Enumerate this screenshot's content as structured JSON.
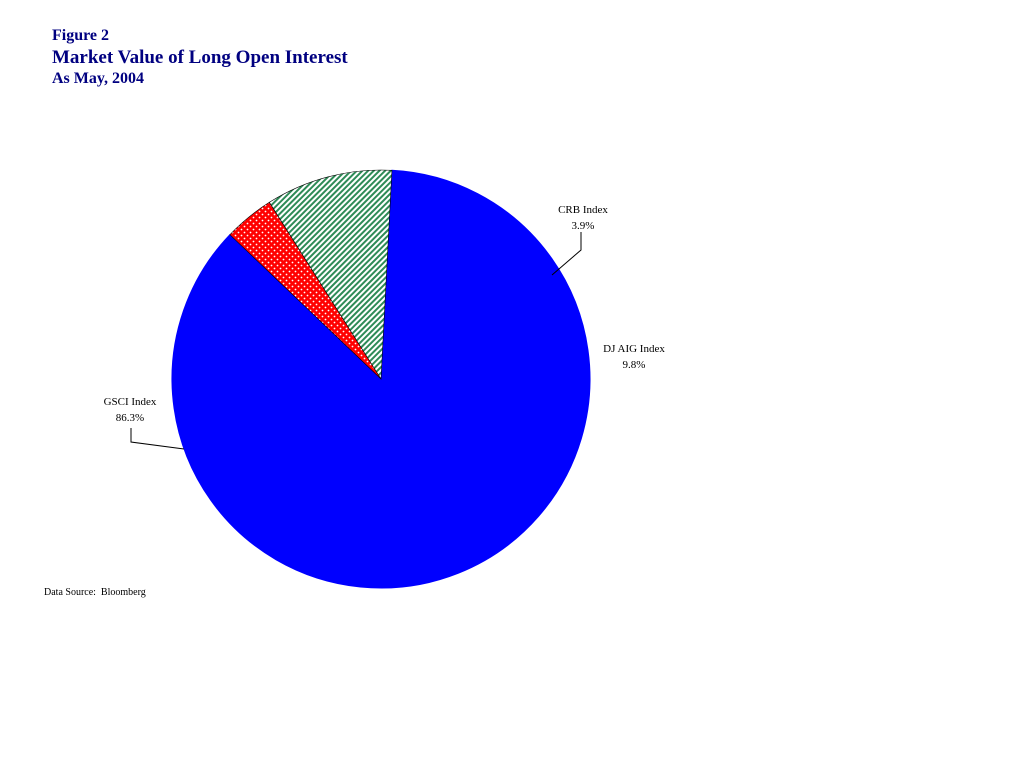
{
  "header": {
    "figure_label": "Figure 2",
    "title": "Market Value of Long Open Interest",
    "subtitle": "As May, 2004"
  },
  "chart_data": {
    "type": "pie",
    "title": "Market Value of Long Open Interest",
    "subtitle": "As May, 2004",
    "slices": [
      {
        "label": "GSCI Index",
        "value": 86.3,
        "value_label": "86.3%",
        "color": "#0000FF",
        "pattern": "solid"
      },
      {
        "label": "CRB Index",
        "value": 3.9,
        "value_label": "3.9%",
        "color": "#FF0000",
        "pattern": "white-dots"
      },
      {
        "label": "DJ AIG Index",
        "value": 9.8,
        "value_label": "9.8%",
        "color": "#2E8B57",
        "pattern": "diagonal-hatch"
      }
    ],
    "start_angle_degrees": 87,
    "direction": "clockwise"
  },
  "footer": {
    "source": "Data Source:  Bloomberg"
  }
}
